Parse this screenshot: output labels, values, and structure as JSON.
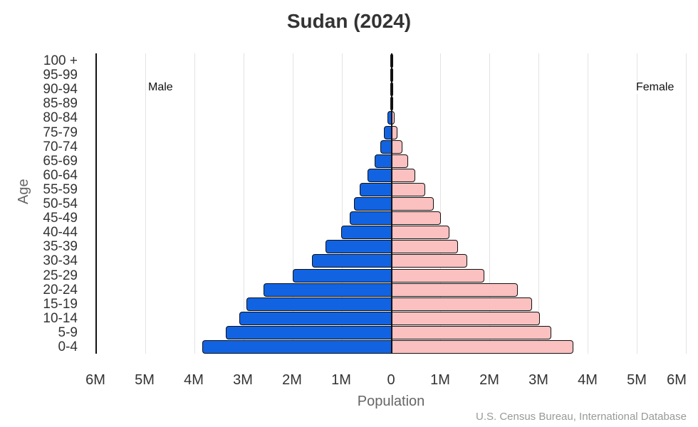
{
  "title": "Sudan (2024)",
  "legend": {
    "male": "Male",
    "female": "Female"
  },
  "axes": {
    "xlabel": "Population",
    "ylabel": "Age",
    "xticks": [
      "6M",
      "5M",
      "4M",
      "3M",
      "2M",
      "1M",
      "0",
      "1M",
      "2M",
      "3M",
      "4M",
      "5M",
      "6M"
    ]
  },
  "credit": "U.S. Census Bureau, International Database",
  "colors": {
    "male": "#1263e2",
    "female": "#fbc0c0",
    "border": "#111111",
    "grid": "#e3e3e3"
  },
  "chart_data": {
    "type": "bar",
    "orientation": "horizontal",
    "subtype": "population-pyramid",
    "title": "Sudan (2024)",
    "xlabel": "Population",
    "ylabel": "Age",
    "xlim": [
      -6000000,
      6000000
    ],
    "xtick_labels": [
      "6M",
      "5M",
      "4M",
      "3M",
      "2M",
      "1M",
      "0",
      "1M",
      "2M",
      "3M",
      "4M",
      "5M",
      "6M"
    ],
    "grid": true,
    "legend": [
      "Male",
      "Female"
    ],
    "legend_position": "inside-top",
    "categories": [
      "0-4",
      "5-9",
      "10-14",
      "15-19",
      "20-24",
      "25-29",
      "30-34",
      "35-39",
      "40-44",
      "45-49",
      "50-54",
      "55-59",
      "60-64",
      "65-69",
      "70-74",
      "75-79",
      "80-84",
      "85-89",
      "90-94",
      "95-99",
      "100 +"
    ],
    "series": [
      {
        "name": "Male",
        "values": [
          3860000,
          3380000,
          3100000,
          2960000,
          2610000,
          2010000,
          1620000,
          1350000,
          1030000,
          860000,
          770000,
          650000,
          490000,
          350000,
          230000,
          160000,
          90000,
          30000,
          8000,
          3000,
          1000
        ]
      },
      {
        "name": "Female",
        "values": [
          3700000,
          3250000,
          3010000,
          2860000,
          2570000,
          1880000,
          1540000,
          1350000,
          1170000,
          1000000,
          860000,
          680000,
          480000,
          330000,
          220000,
          120000,
          60000,
          20000,
          6000,
          2000,
          1000
        ]
      }
    ],
    "source": "U.S. Census Bureau, International Database"
  }
}
